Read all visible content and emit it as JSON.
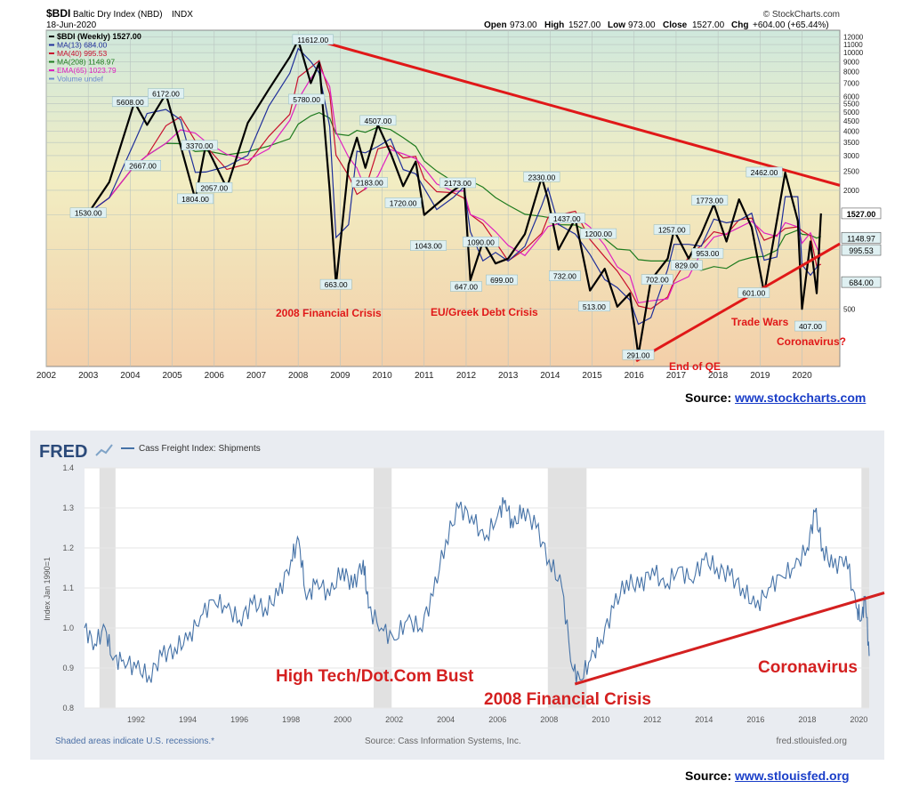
{
  "bdi": {
    "symbol": "$BDI",
    "name": "Baltic Dry Index (NBD)",
    "exchange": "INDX",
    "date": "18-Jun-2020",
    "attribution": "© StockCharts.com",
    "quote": {
      "open_label": "Open",
      "open": "973.00",
      "high_label": "High",
      "high": "1527.00",
      "low_label": "Low",
      "low": "973.00",
      "close_label": "Close",
      "close": "1527.00",
      "chg_label": "Chg",
      "chg": "+604.00 (+65.44%)"
    },
    "legend": [
      {
        "label": "$BDI (Weekly) 1527.00",
        "color": "#000000"
      },
      {
        "label": "MA(13) 684.00",
        "color": "#1f2f9a"
      },
      {
        "label": "MA(40) 995.53",
        "color": "#c8102e"
      },
      {
        "label": "MA(208) 1148.97",
        "color": "#1e7b1e"
      },
      {
        "label": "EMA(65) 1023.79",
        "color": "#e020c0"
      },
      {
        "label": "Volume undef",
        "color": "#6a8ad0"
      }
    ],
    "source_label": "Source:",
    "source_link": "www.stockcharts.com"
  },
  "fred": {
    "logo": "FRED",
    "series_title": "Cass Freight Index: Shipments",
    "ylabel": "Index Jan 1990=1",
    "footer_left": "Shaded areas indicate U.S. recessions.*",
    "footer_center": "Source: Cass Information Systems, Inc.",
    "footer_right": "fred.stlouisfed.org",
    "source_label": "Source:",
    "source_link": "www.stlouisfed.org"
  },
  "chart_data": [
    {
      "type": "line",
      "title": "$BDI Baltic Dry Index (NBD) INDX",
      "xlabel": "",
      "ylabel": "",
      "scale": "log",
      "ylim": [
        255,
        13000
      ],
      "xlim": [
        2002.0,
        2020.9
      ],
      "x_ticks": [
        "2002",
        "2003",
        "2004",
        "2005",
        "2006",
        "2007",
        "2008",
        "2009",
        "2010",
        "2011",
        "2012",
        "2013",
        "2014",
        "2015",
        "2016",
        "2017",
        "2018",
        "2019",
        "2020"
      ],
      "y_ticks": [
        12000,
        11000,
        10000,
        9000,
        8000,
        7000,
        6000,
        5500,
        5000,
        4500,
        4000,
        3500,
        3000,
        2500,
        2000,
        1500,
        1000,
        500
      ],
      "series": [
        {
          "name": "$BDI (Weekly)",
          "color": "#000000",
          "x": [
            2003.0,
            2003.5,
            2004.1,
            2004.4,
            2004.85,
            2005.2,
            2005.55,
            2005.8,
            2006.3,
            2006.8,
            2007.3,
            2007.8,
            2008.0,
            2008.3,
            2008.5,
            2008.75,
            2008.9,
            2009.2,
            2009.4,
            2009.6,
            2009.9,
            2010.2,
            2010.5,
            2010.8,
            2011.0,
            2011.3,
            2011.7,
            2011.95,
            2012.1,
            2012.4,
            2012.7,
            2013.0,
            2013.4,
            2013.8,
            2013.95,
            2014.2,
            2014.6,
            2014.95,
            2015.3,
            2015.6,
            2015.9,
            2016.1,
            2016.4,
            2016.8,
            2016.95,
            2017.3,
            2017.6,
            2017.9,
            2018.2,
            2018.5,
            2018.8,
            2019.1,
            2019.4,
            2019.6,
            2019.9,
            2020.0,
            2020.2,
            2020.35,
            2020.45
          ],
          "y": [
            1530,
            2200,
            5608,
            4300,
            6172,
            3370,
            1804,
            3400,
            2057,
            4400,
            6500,
            9500,
            11612,
            7000,
            8900,
            2000,
            663,
            2700,
            3700,
            2600,
            4300,
            3100,
            2100,
            2800,
            1500,
            1700,
            2000,
            2173,
            700,
            1100,
            850,
            900,
            1200,
            2330,
            1800,
            1000,
            1437,
            620,
            800,
            513,
            600,
            291,
            700,
            900,
            1257,
            900,
            1200,
            1700,
            1100,
            1800,
            1300,
            601,
            1400,
            2462,
            1400,
            500,
            1100,
            600,
            1527
          ]
        },
        {
          "name": "MA(13)",
          "color": "#1f2f9a"
        },
        {
          "name": "MA(40)",
          "color": "#c8102e"
        },
        {
          "name": "MA(208)",
          "color": "#1e7b1e"
        },
        {
          "name": "EMA(65)",
          "color": "#e020c0"
        }
      ],
      "price_labels": [
        {
          "x": 2003.0,
          "y": 1530,
          "text": "1530.00"
        },
        {
          "x": 2004.0,
          "y": 5608,
          "text": "5608.00"
        },
        {
          "x": 2004.3,
          "y": 2667,
          "text": "2667.00"
        },
        {
          "x": 2004.85,
          "y": 6172,
          "text": "6172.00"
        },
        {
          "x": 2005.65,
          "y": 3370,
          "text": "3370.00"
        },
        {
          "x": 2005.55,
          "y": 1804,
          "text": "1804.00"
        },
        {
          "x": 2006.0,
          "y": 2057,
          "text": "2057.00"
        },
        {
          "x": 2008.2,
          "y": 5780,
          "text": "5780.00"
        },
        {
          "x": 2008.35,
          "y": 11612,
          "text": "11612.00"
        },
        {
          "x": 2008.9,
          "y": 663,
          "text": "663.00"
        },
        {
          "x": 2009.7,
          "y": 2183,
          "text": "2183.00"
        },
        {
          "x": 2009.9,
          "y": 4507,
          "text": "4507.00"
        },
        {
          "x": 2010.5,
          "y": 1720,
          "text": "1720.00"
        },
        {
          "x": 2011.1,
          "y": 1043,
          "text": "1043.00"
        },
        {
          "x": 2011.8,
          "y": 2173,
          "text": "2173.00"
        },
        {
          "x": 2012.0,
          "y": 647,
          "text": "647.00"
        },
        {
          "x": 2012.35,
          "y": 1090,
          "text": "1090.00"
        },
        {
          "x": 2012.85,
          "y": 699,
          "text": "699.00"
        },
        {
          "x": 2013.8,
          "y": 2330,
          "text": "2330.00"
        },
        {
          "x": 2014.4,
          "y": 1437,
          "text": "1437.00"
        },
        {
          "x": 2014.35,
          "y": 732,
          "text": "732.00"
        },
        {
          "x": 2015.15,
          "y": 1200,
          "text": "1200.00"
        },
        {
          "x": 2015.05,
          "y": 513,
          "text": "513.00"
        },
        {
          "x": 2016.1,
          "y": 291,
          "text": "291.00"
        },
        {
          "x": 2016.55,
          "y": 702,
          "text": "702.00"
        },
        {
          "x": 2016.9,
          "y": 1257,
          "text": "1257.00"
        },
        {
          "x": 2017.25,
          "y": 829,
          "text": "829.00"
        },
        {
          "x": 2017.75,
          "y": 953,
          "text": "953.00"
        },
        {
          "x": 2017.8,
          "y": 1773,
          "text": "1773.00"
        },
        {
          "x": 2018.85,
          "y": 601,
          "text": "601.00"
        },
        {
          "x": 2019.1,
          "y": 2462,
          "text": "2462.00"
        },
        {
          "x": 2020.2,
          "y": 407,
          "text": "407.00"
        }
      ],
      "right_value_labels": [
        "1527.00",
        "1148.97",
        "995.53",
        "684.00"
      ],
      "trend_lines": [
        {
          "from": {
            "x": 2008.4,
            "y": 11612
          },
          "to": {
            "x": 2020.9,
            "y": 2120
          }
        },
        {
          "from": {
            "x": 2016.05,
            "y": 272
          },
          "to": {
            "x": 2020.9,
            "y": 1070
          }
        }
      ],
      "annotations": [
        "2008 Financial Crisis",
        "EU/Greek Debt Crisis",
        "Trade Wars",
        "Coronavirus?",
        "End of QE"
      ]
    },
    {
      "type": "line",
      "title": "Cass Freight Index: Shipments",
      "xlabel": "",
      "ylabel": "Index Jan 1990=1",
      "ylim": [
        0.8,
        1.4
      ],
      "xlim": [
        1990.0,
        2020.4
      ],
      "x_ticks": [
        "1992",
        "1994",
        "1996",
        "1998",
        "2000",
        "2002",
        "2004",
        "2006",
        "2008",
        "2010",
        "2012",
        "2014",
        "2016",
        "2018",
        "2020"
      ],
      "y_ticks": [
        "0.8",
        "0.9",
        "1.0",
        "1.1",
        "1.2",
        "1.3",
        "1.4"
      ],
      "recessions": [
        [
          1990.58,
          1991.2
        ],
        [
          2001.2,
          2001.9
        ],
        [
          2007.95,
          2009.45
        ],
        [
          2020.1,
          2020.4
        ]
      ],
      "series": [
        {
          "name": "Cass Freight Index: Shipments",
          "color": "#4572a7",
          "x": [
            1990.0,
            1990.4,
            1990.8,
            1991.1,
            1991.5,
            1992.0,
            1992.5,
            1993.0,
            1993.5,
            1994.0,
            1994.5,
            1995.0,
            1995.5,
            1996.0,
            1996.5,
            1997.0,
            1997.5,
            1998.0,
            1998.3,
            1998.6,
            1999.0,
            1999.5,
            2000.0,
            2000.4,
            2000.8,
            2001.0,
            2001.5,
            2002.0,
            2002.5,
            2003.0,
            2003.5,
            2004.0,
            2004.5,
            2005.0,
            2005.5,
            2006.0,
            2006.3,
            2006.6,
            2007.0,
            2007.5,
            2008.0,
            2008.5,
            2008.9,
            2009.2,
            2009.6,
            2010.0,
            2010.5,
            2011.0,
            2011.5,
            2012.0,
            2012.5,
            2013.0,
            2013.5,
            2014.0,
            2014.5,
            2015.0,
            2015.5,
            2016.0,
            2016.5,
            2017.0,
            2017.5,
            2018.0,
            2018.3,
            2018.6,
            2019.0,
            2019.5,
            2019.9,
            2020.1,
            2020.25,
            2020.4
          ],
          "y": [
            1.0,
            0.96,
            1.0,
            0.92,
            0.92,
            0.9,
            0.88,
            0.93,
            0.95,
            0.97,
            1.03,
            1.07,
            1.05,
            1.02,
            1.06,
            1.05,
            1.08,
            1.17,
            1.22,
            1.07,
            1.12,
            1.08,
            1.15,
            1.1,
            1.17,
            1.05,
            1.0,
            0.97,
            1.02,
            1.0,
            1.08,
            1.22,
            1.3,
            1.28,
            1.22,
            1.28,
            1.32,
            1.25,
            1.3,
            1.25,
            1.17,
            1.1,
            0.9,
            0.87,
            0.92,
            0.97,
            1.05,
            1.12,
            1.1,
            1.15,
            1.1,
            1.15,
            1.12,
            1.17,
            1.15,
            1.13,
            1.1,
            1.05,
            1.1,
            1.13,
            1.15,
            1.2,
            1.29,
            1.2,
            1.15,
            1.18,
            1.05,
            1.02,
            1.08,
            0.93
          ]
        }
      ],
      "trend_lines": [
        {
          "from": {
            "x": 2009.0,
            "y": 0.86
          },
          "to": {
            "x": 2020.4,
            "y": 1.07
          }
        }
      ],
      "annotations": [
        "High Tech/Dot.Com Bust",
        "2008 Financial Crisis",
        "Coronavirus"
      ]
    }
  ]
}
